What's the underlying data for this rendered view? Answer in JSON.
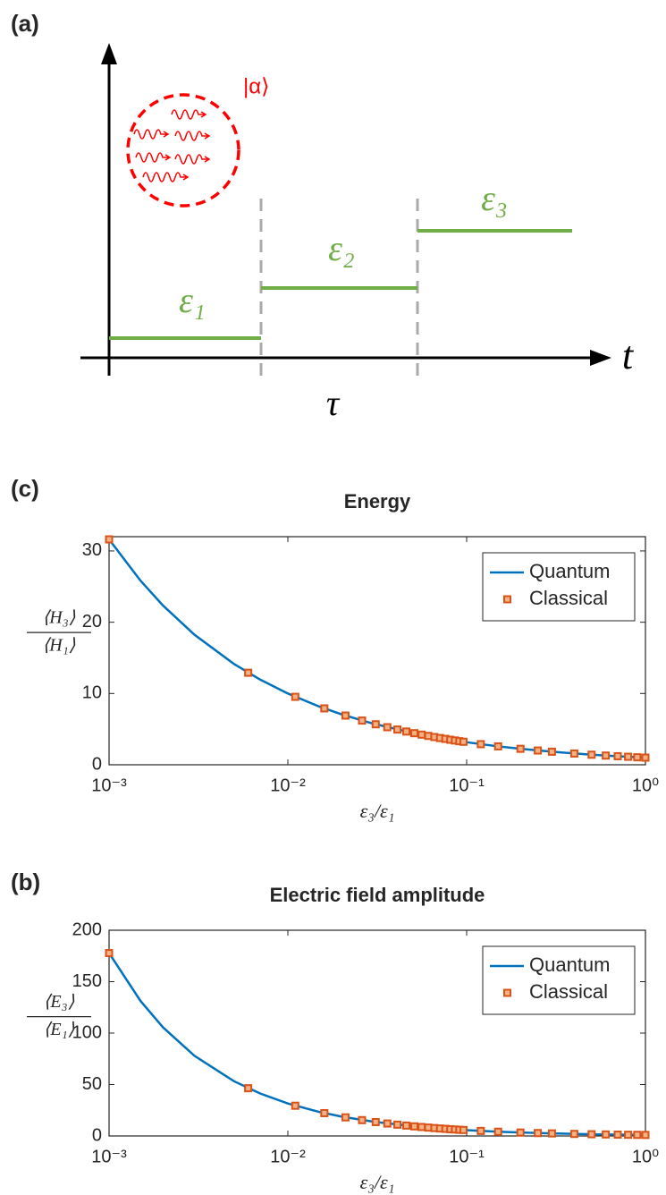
{
  "diagram": {
    "panel_label": "(a)",
    "state_label": "|α⟩",
    "levels": [
      "ε₁",
      "ε₂",
      "ε₃"
    ],
    "time_axis": "t",
    "duration": "τ"
  },
  "chart_data": [
    {
      "type": "line",
      "panel_label": "(c)",
      "title": "Energy",
      "xlabel": "ε₃/ε₁",
      "ylabel": {
        "numerator": "⟨H₃⟩",
        "denominator": "⟨H₁⟩"
      },
      "xscale": "log",
      "xlim": [
        0.001,
        1
      ],
      "xticks": [
        {
          "value": 0.001,
          "label": "10⁻³"
        },
        {
          "value": 0.01,
          "label": "10⁻²"
        },
        {
          "value": 0.1,
          "label": "10⁻¹"
        },
        {
          "value": 1,
          "label": "10⁰"
        }
      ],
      "ylim": [
        0,
        32
      ],
      "yticks": [
        0,
        10,
        20,
        30
      ],
      "legend": "upper right",
      "series": [
        {
          "name": "Quantum",
          "color": "#0072bd",
          "style": "line",
          "x": [
            0.001,
            0.0015,
            0.002,
            0.003,
            0.005,
            0.007,
            0.01,
            0.015,
            0.02,
            0.03,
            0.05,
            0.07,
            0.1,
            0.15,
            0.2,
            0.3,
            0.5,
            0.7,
            1
          ],
          "values": [
            31.62,
            25.82,
            22.36,
            18.26,
            14.14,
            11.95,
            10,
            8.16,
            7.07,
            5.77,
            4.47,
            3.78,
            3.16,
            2.58,
            2.24,
            1.83,
            1.41,
            1.2,
            1
          ]
        },
        {
          "name": "Classical",
          "color": "#d95319",
          "style": "marker",
          "x": [
            0.001,
            0.006,
            0.011,
            0.016,
            0.021,
            0.026,
            0.031,
            0.036,
            0.041,
            0.046,
            0.051,
            0.056,
            0.061,
            0.066,
            0.071,
            0.076,
            0.081,
            0.086,
            0.091,
            0.096,
            0.12,
            0.15,
            0.2,
            0.25,
            0.3,
            0.4,
            0.5,
            0.6,
            0.7,
            0.8,
            0.9,
            1
          ],
          "values": [
            31.62,
            12.91,
            9.53,
            7.91,
            6.9,
            6.2,
            5.68,
            5.27,
            4.94,
            4.66,
            4.43,
            4.23,
            4.05,
            3.89,
            3.75,
            3.63,
            3.51,
            3.41,
            3.31,
            3.23,
            2.89,
            2.58,
            2.24,
            2,
            1.83,
            1.58,
            1.41,
            1.29,
            1.2,
            1.12,
            1.05,
            1
          ]
        }
      ]
    },
    {
      "type": "line",
      "panel_label": "(b)",
      "title": "Electric field amplitude",
      "xlabel": "ε₃/ε₁",
      "ylabel": {
        "numerator": "⟨E₃⟩",
        "denominator": "⟨E₁⟩"
      },
      "xscale": "log",
      "xlim": [
        0.001,
        1
      ],
      "xticks": [
        {
          "value": 0.001,
          "label": "10⁻³"
        },
        {
          "value": 0.01,
          "label": "10⁻²"
        },
        {
          "value": 0.1,
          "label": "10⁻¹"
        },
        {
          "value": 1,
          "label": "10⁰"
        }
      ],
      "ylim": [
        0,
        200
      ],
      "yticks": [
        0,
        50,
        100,
        150,
        200
      ],
      "legend": "upper right",
      "series": [
        {
          "name": "Quantum",
          "color": "#0072bd",
          "style": "line",
          "x": [
            0.001,
            0.0015,
            0.002,
            0.003,
            0.005,
            0.007,
            0.01,
            0.015,
            0.02,
            0.03,
            0.05,
            0.07,
            0.1,
            0.15,
            0.2,
            0.3,
            0.5,
            0.7,
            1
          ],
          "values": [
            177.8,
            131.2,
            105.7,
            78,
            53.2,
            41.3,
            31.6,
            23.3,
            18.8,
            13.9,
            9.46,
            7.35,
            5.62,
            4.15,
            3.34,
            2.47,
            1.68,
            1.31,
            1
          ]
        },
        {
          "name": "Classical",
          "color": "#d95319",
          "style": "marker",
          "x": [
            0.001,
            0.006,
            0.011,
            0.016,
            0.021,
            0.026,
            0.031,
            0.036,
            0.041,
            0.046,
            0.051,
            0.056,
            0.061,
            0.066,
            0.071,
            0.076,
            0.081,
            0.086,
            0.091,
            0.096,
            0.12,
            0.15,
            0.2,
            0.25,
            0.3,
            0.4,
            0.5,
            0.6,
            0.7,
            0.8,
            0.9,
            1
          ],
          "values": [
            177.8,
            46.4,
            29.4,
            22.2,
            18.1,
            15.4,
            13.5,
            12.1,
            11,
            10.1,
            9.33,
            8.7,
            8.15,
            7.67,
            7.26,
            6.92,
            6.57,
            6.3,
            6.02,
            5.8,
            4.91,
            4.14,
            3.35,
            2.83,
            2.48,
            1.99,
            1.68,
            1.47,
            1.31,
            1.18,
            1.08,
            1
          ]
        }
      ]
    }
  ]
}
